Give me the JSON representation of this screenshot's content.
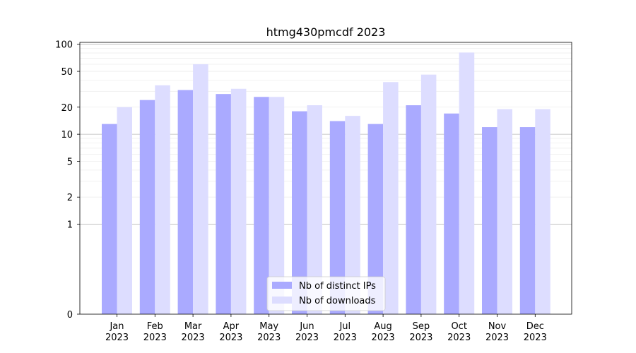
{
  "chart_data": {
    "type": "bar",
    "title": "htmg430pmcdf 2023",
    "xlabel": "",
    "ylabel": "",
    "scale": "symlog",
    "categories": [
      [
        "Jan",
        "2023"
      ],
      [
        "Feb",
        "2023"
      ],
      [
        "Mar",
        "2023"
      ],
      [
        "Apr",
        "2023"
      ],
      [
        "May",
        "2023"
      ],
      [
        "Jun",
        "2023"
      ],
      [
        "Jul",
        "2023"
      ],
      [
        "Aug",
        "2023"
      ],
      [
        "Sep",
        "2023"
      ],
      [
        "Oct",
        "2023"
      ],
      [
        "Nov",
        "2023"
      ],
      [
        "Dec",
        "2023"
      ]
    ],
    "series": [
      {
        "name": "Nb of distinct IPs",
        "color": "#aaaaff",
        "values": [
          13,
          24,
          31,
          28,
          26,
          18,
          14,
          13,
          21,
          17,
          12,
          12
        ]
      },
      {
        "name": "Nb of downloads",
        "color": "#ddddff",
        "values": [
          20,
          35,
          60,
          32,
          26,
          21,
          16,
          38,
          46,
          81,
          19,
          19
        ]
      }
    ],
    "yticks": [
      {
        "value": 0,
        "label": "0"
      },
      {
        "value": 1,
        "label": "1"
      },
      {
        "value": 2,
        "label": "2"
      },
      {
        "value": 5,
        "label": "5"
      },
      {
        "value": 10,
        "label": "10"
      },
      {
        "value": 20,
        "label": "20"
      },
      {
        "value": 50,
        "label": "50"
      },
      {
        "value": 100,
        "label": "100"
      }
    ],
    "ylim": [
      0,
      105
    ],
    "legend_position": "lower-center",
    "grid": true
  }
}
